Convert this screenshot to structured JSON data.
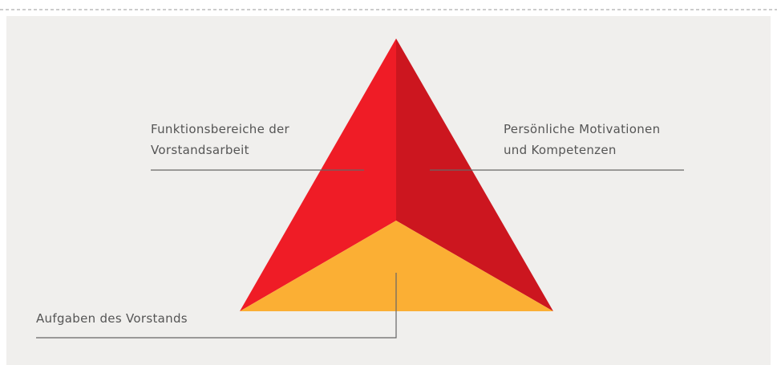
{
  "labels": {
    "left": [
      "Funktionsbereiche der",
      "Vorstandsarbeit"
    ],
    "right": [
      "Persönliche Motivationen",
      "und Kompetenzen"
    ],
    "bottom": "Aufgaben des Vorstands"
  }
}
